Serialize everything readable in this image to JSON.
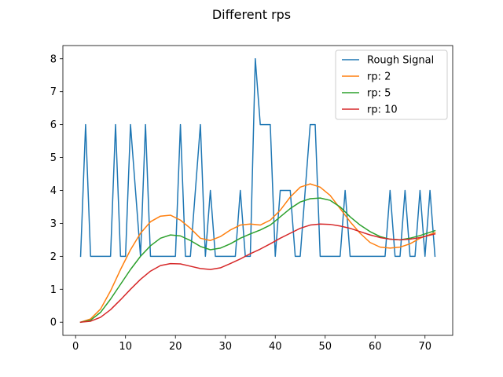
{
  "chart_data": {
    "type": "line",
    "title": "Different rps",
    "xlabel": "",
    "ylabel": "",
    "xlim": [
      -2.55,
      75.55
    ],
    "ylim": [
      -0.4,
      8.4
    ],
    "xticks": [
      0,
      10,
      20,
      30,
      40,
      50,
      60,
      70
    ],
    "yticks": [
      0,
      1,
      2,
      3,
      4,
      5,
      6,
      7,
      8
    ],
    "grid": false,
    "legend_position": "top-right",
    "series": [
      {
        "name": "Rough Signal",
        "color": "#1f77b4",
        "x": [
          1,
          2,
          3,
          4,
          5,
          6,
          7,
          8,
          9,
          10,
          11,
          12,
          13,
          14,
          15,
          16,
          17,
          18,
          19,
          20,
          21,
          22,
          23,
          24,
          25,
          26,
          27,
          28,
          29,
          30,
          31,
          32,
          33,
          34,
          35,
          36,
          37,
          38,
          39,
          40,
          41,
          42,
          43,
          44,
          45,
          46,
          47,
          48,
          49,
          50,
          51,
          52,
          53,
          54,
          55,
          56,
          57,
          58,
          59,
          60,
          61,
          62,
          63,
          64,
          65,
          66,
          67,
          68,
          69,
          70,
          71,
          72
        ],
        "y": [
          2,
          6,
          2,
          2,
          2,
          2,
          2,
          6,
          2,
          2,
          6,
          4,
          2,
          6,
          2,
          2,
          2,
          2,
          2,
          2,
          6,
          2,
          2,
          4,
          6,
          2,
          4,
          2,
          2,
          2,
          2,
          2,
          4,
          2,
          2,
          8,
          6,
          6,
          6,
          2,
          4,
          4,
          4,
          2,
          2,
          4,
          6,
          6,
          2,
          2,
          2,
          2,
          2,
          4,
          2,
          2,
          2,
          2,
          2,
          2,
          2,
          2,
          4,
          2,
          2,
          4,
          2,
          2,
          4,
          2,
          4,
          2
        ]
      },
      {
        "name": "rp: 2",
        "color": "#ff7f0e",
        "x": [
          1,
          3,
          5,
          7,
          9,
          11,
          13,
          15,
          17,
          19,
          21,
          23,
          25,
          27,
          29,
          31,
          33,
          35,
          37,
          39,
          41,
          43,
          45,
          47,
          49,
          51,
          53,
          55,
          57,
          59,
          61,
          63,
          65,
          67,
          69,
          72
        ],
        "y": [
          0,
          0.1,
          0.4,
          0.95,
          1.6,
          2.2,
          2.7,
          3.05,
          3.22,
          3.25,
          3.1,
          2.85,
          2.55,
          2.48,
          2.6,
          2.8,
          2.95,
          2.98,
          2.95,
          3.1,
          3.4,
          3.8,
          4.1,
          4.2,
          4.1,
          3.85,
          3.45,
          3.05,
          2.7,
          2.42,
          2.28,
          2.25,
          2.28,
          2.38,
          2.55,
          2.72
        ]
      },
      {
        "name": "rp: 5",
        "color": "#2ca02c",
        "x": [
          1,
          3,
          5,
          7,
          9,
          11,
          13,
          15,
          17,
          19,
          21,
          23,
          25,
          27,
          29,
          31,
          33,
          35,
          37,
          39,
          41,
          43,
          45,
          47,
          49,
          51,
          53,
          55,
          57,
          59,
          61,
          63,
          65,
          67,
          69,
          72
        ],
        "y": [
          0,
          0.06,
          0.3,
          0.7,
          1.15,
          1.6,
          2.0,
          2.32,
          2.55,
          2.65,
          2.62,
          2.48,
          2.3,
          2.2,
          2.25,
          2.38,
          2.55,
          2.68,
          2.8,
          2.95,
          3.2,
          3.45,
          3.65,
          3.75,
          3.77,
          3.7,
          3.5,
          3.2,
          2.95,
          2.75,
          2.6,
          2.52,
          2.5,
          2.55,
          2.63,
          2.78
        ]
      },
      {
        "name": "rp: 10",
        "color": "#d62728",
        "x": [
          1,
          3,
          5,
          7,
          9,
          11,
          13,
          15,
          17,
          19,
          21,
          23,
          25,
          27,
          29,
          31,
          33,
          35,
          37,
          39,
          41,
          43,
          45,
          47,
          49,
          51,
          53,
          55,
          57,
          59,
          61,
          63,
          65,
          67,
          69,
          72
        ],
        "y": [
          0,
          0.03,
          0.15,
          0.38,
          0.68,
          1.0,
          1.3,
          1.55,
          1.72,
          1.78,
          1.77,
          1.7,
          1.63,
          1.6,
          1.65,
          1.78,
          1.92,
          2.08,
          2.22,
          2.38,
          2.55,
          2.7,
          2.85,
          2.95,
          2.98,
          2.97,
          2.92,
          2.85,
          2.75,
          2.65,
          2.57,
          2.52,
          2.5,
          2.52,
          2.57,
          2.68
        ]
      }
    ]
  }
}
